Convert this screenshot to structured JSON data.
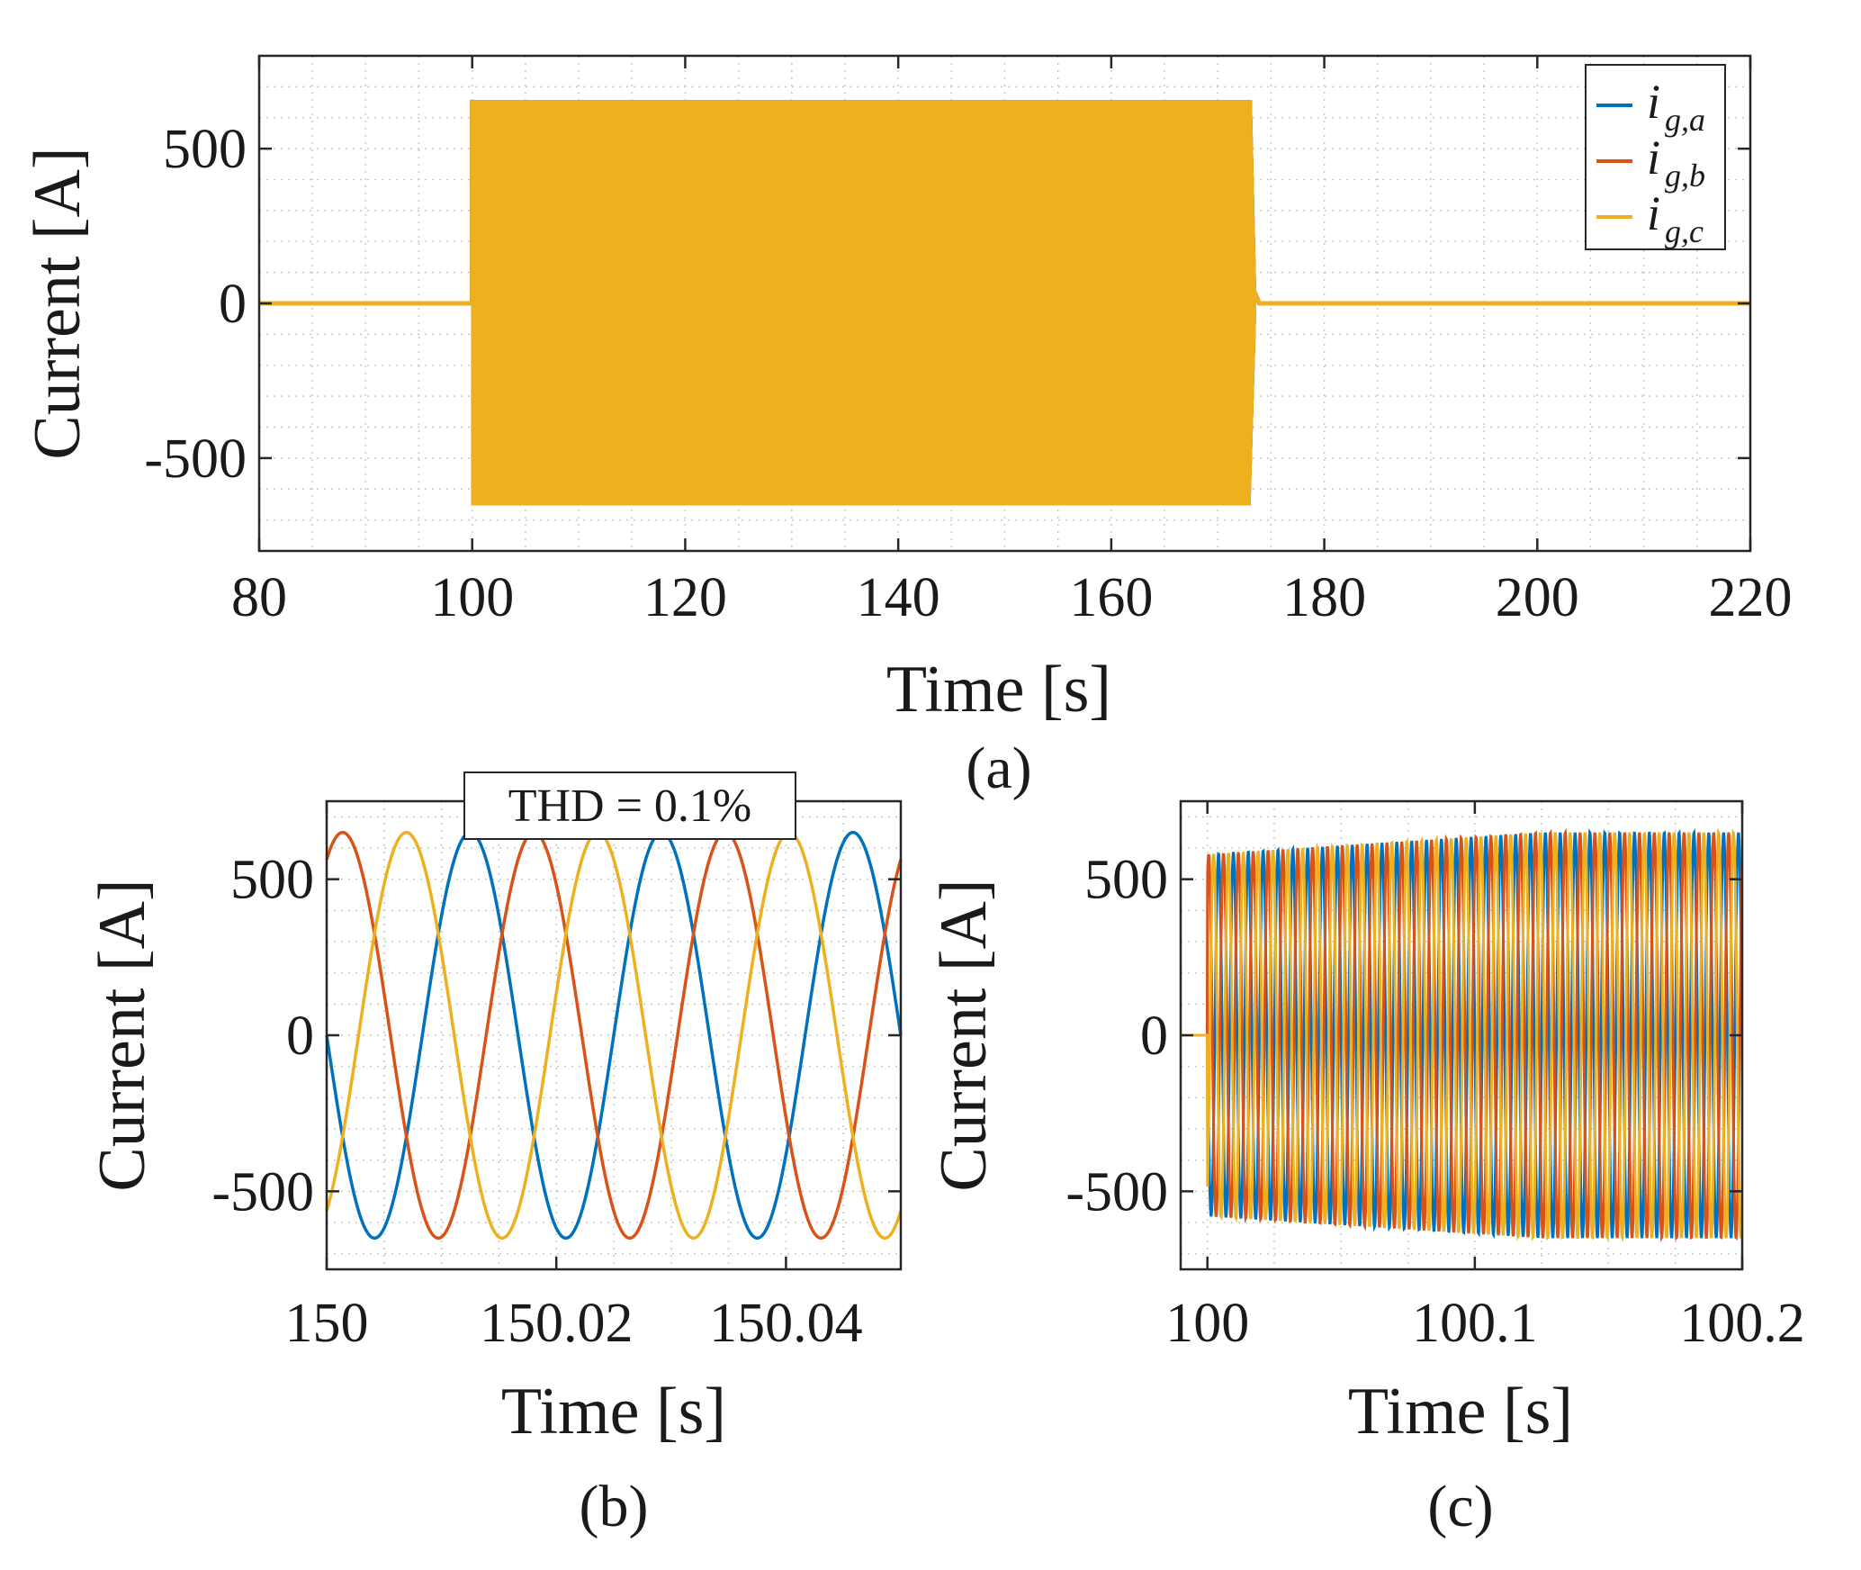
{
  "figure": {
    "colors": {
      "phase_a": "#0072BD",
      "phase_b": "#D95319",
      "phase_c": "#EDB120",
      "grid": "#c8c8c8",
      "axis": "#262626"
    }
  },
  "chart_data": [
    {
      "id": "a",
      "type": "line",
      "caption": "(a)",
      "xlabel": "Time [s]",
      "ylabel": "Current [A]",
      "xlim": [
        80,
        220
      ],
      "ylim": [
        -800,
        800
      ],
      "xticks": [
        80,
        100,
        120,
        140,
        160,
        180,
        200,
        220
      ],
      "xtick_labels": [
        "80",
        "100",
        "120",
        "140",
        "160",
        "180",
        "200",
        "220"
      ],
      "yticks": [
        -500,
        0,
        500
      ],
      "ytick_labels": [
        "-500",
        "0",
        "500"
      ],
      "grid": true,
      "legend": {
        "placement": "top-right",
        "entries": [
          {
            "main": "i",
            "sub": "g,a",
            "color": "#0072BD"
          },
          {
            "main": "i",
            "sub": "g,b",
            "color": "#D95319"
          },
          {
            "main": "i",
            "sub": "g,c",
            "color": "#EDB120"
          }
        ]
      },
      "series": [
        {
          "name": "i_g,a",
          "color": "#0072BD",
          "envelope": {
            "t_on": 100,
            "t_off": 173,
            "amplitude": 650,
            "off_value": 0
          }
        },
        {
          "name": "i_g,b",
          "color": "#D95319",
          "envelope": {
            "t_on": 100,
            "t_off": 173,
            "amplitude": 650,
            "off_value": 0
          }
        },
        {
          "name": "i_g,c",
          "color": "#EDB120",
          "envelope": {
            "t_on": 100,
            "t_off": 173,
            "amplitude": 650,
            "off_value": 0
          }
        }
      ]
    },
    {
      "id": "b",
      "type": "line",
      "caption": "(b)",
      "xlabel": "Time [s]",
      "ylabel": "Current [A]",
      "xlim": [
        150,
        150.05
      ],
      "ylim": [
        -750,
        750
      ],
      "xticks": [
        150,
        150.02,
        150.04
      ],
      "xtick_labels": [
        "150",
        "150.02",
        "150.04"
      ],
      "yticks": [
        -500,
        0,
        500
      ],
      "ytick_labels": [
        "-500",
        "0",
        "500"
      ],
      "grid": true,
      "annotation": "THD = 0.1%",
      "series": [
        {
          "name": "i_g,a",
          "color": "#0072BD",
          "amplitude": 650,
          "frequency_hz": 60,
          "phase_deg": 180
        },
        {
          "name": "i_g,b",
          "color": "#D95319",
          "amplitude": 650,
          "frequency_hz": 60,
          "phase_deg": 60
        },
        {
          "name": "i_g,c",
          "color": "#EDB120",
          "amplitude": 650,
          "frequency_hz": 60,
          "phase_deg": -60
        }
      ]
    },
    {
      "id": "c",
      "type": "line",
      "caption": "(c)",
      "xlabel": "Time [s]",
      "ylabel": "Current [A]",
      "xlim": [
        99.99,
        100.2
      ],
      "ylim": [
        -750,
        750
      ],
      "xticks": [
        100,
        100.1,
        100.2
      ],
      "xtick_labels": [
        "100",
        "100.1",
        "100.2"
      ],
      "yticks": [
        -500,
        0,
        500
      ],
      "ytick_labels": [
        "-500",
        "0",
        "500"
      ],
      "grid": true,
      "series": [
        {
          "name": "i_g,a",
          "color": "#0072BD",
          "t_on": 100,
          "amplitude_start": 580,
          "amplitude_end": 650,
          "frequency_hz": 180,
          "phase_deg": 180
        },
        {
          "name": "i_g,b",
          "color": "#D95319",
          "t_on": 100,
          "amplitude_start": 580,
          "amplitude_end": 650,
          "frequency_hz": 180,
          "phase_deg": 60
        },
        {
          "name": "i_g,c",
          "color": "#EDB120",
          "t_on": 100,
          "amplitude_start": 580,
          "amplitude_end": 650,
          "frequency_hz": 180,
          "phase_deg": -60
        }
      ]
    }
  ]
}
